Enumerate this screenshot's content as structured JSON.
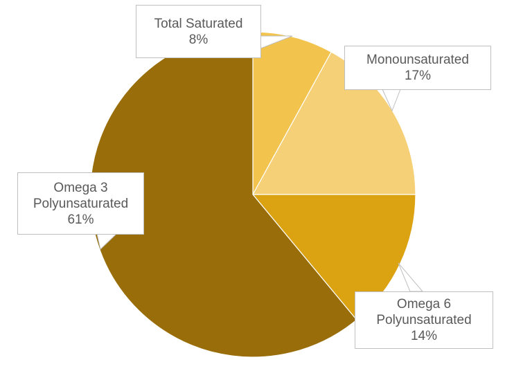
{
  "chart_data": {
    "type": "pie",
    "title": "",
    "start_angle_deg": 0,
    "direction": "clockwise",
    "slices": [
      {
        "name": "Total Saturated",
        "value": 8,
        "label": "8%",
        "color": "#F2C44E"
      },
      {
        "name": "Monounsaturated",
        "value": 17,
        "label": "17%",
        "color": "#F6D077"
      },
      {
        "name": "Omega 6 Polyunsaturated",
        "value": 14,
        "label": "14%",
        "color": "#DBA212"
      },
      {
        "name": "Omega 3 Polyunsaturated",
        "value": 61,
        "label": "61%",
        "color": "#996E0A"
      }
    ],
    "label_lines": [
      [
        "Total Saturated"
      ],
      [
        "Monounsaturated"
      ],
      [
        "Omega 6",
        "Polyunsaturated"
      ],
      [
        "Omega 3",
        "Polyunsaturated"
      ]
    ],
    "legend": "none"
  }
}
